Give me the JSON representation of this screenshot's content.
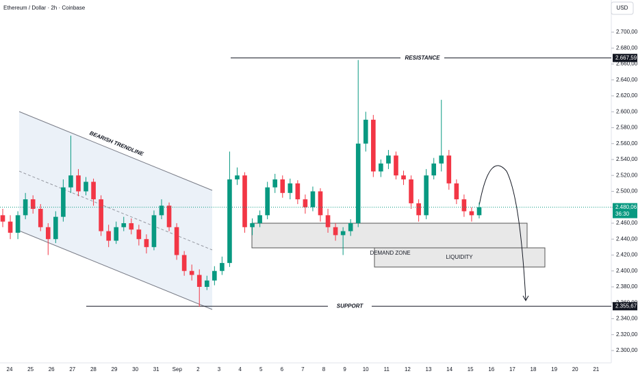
{
  "chart_data": {
    "type": "candlestick",
    "title": "Ethereum / Dollar · 2h · Coinbase",
    "currency": "USD",
    "up_color": "#089981",
    "down_color": "#f23645",
    "open": [
      2470,
      2462,
      2448,
      2470,
      2490,
      2478,
      2455,
      2440,
      2468,
      2505,
      2520,
      2500,
      2512,
      2490,
      2450,
      2438,
      2455,
      2460,
      2452,
      2440,
      2430,
      2470,
      2482,
      2455,
      2420,
      2400,
      2395,
      2380,
      2388,
      2400,
      2410,
      2515,
      2520,
      2455,
      2460,
      2470,
      2505,
      2515,
      2498,
      2510,
      2490,
      2480,
      2500,
      2470,
      2455,
      2445,
      2450,
      2460,
      2560,
      2590,
      2525,
      2535,
      2545,
      2520,
      2515,
      2485,
      2470,
      2520,
      2535,
      2545,
      2510,
      2490,
      2475,
      2470
    ],
    "high": [
      2478,
      2470,
      2475,
      2498,
      2495,
      2484,
      2460,
      2475,
      2515,
      2570,
      2528,
      2518,
      2516,
      2495,
      2458,
      2462,
      2468,
      2466,
      2458,
      2446,
      2476,
      2490,
      2486,
      2460,
      2425,
      2408,
      2402,
      2394,
      2406,
      2418,
      2550,
      2530,
      2524,
      2466,
      2476,
      2512,
      2522,
      2520,
      2516,
      2514,
      2496,
      2506,
      2504,
      2478,
      2460,
      2455,
      2465,
      2665,
      2600,
      2596,
      2540,
      2552,
      2550,
      2526,
      2520,
      2490,
      2528,
      2542,
      2615,
      2552,
      2515,
      2496,
      2480,
      2486
    ],
    "low": [
      2455,
      2440,
      2440,
      2465,
      2472,
      2450,
      2420,
      2435,
      2462,
      2498,
      2494,
      2495,
      2482,
      2444,
      2430,
      2434,
      2450,
      2446,
      2432,
      2422,
      2426,
      2465,
      2450,
      2414,
      2394,
      2388,
      2355,
      2376,
      2382,
      2395,
      2405,
      2508,
      2448,
      2445,
      2455,
      2465,
      2498,
      2492,
      2490,
      2484,
      2472,
      2475,
      2462,
      2448,
      2438,
      2420,
      2444,
      2455,
      2550,
      2518,
      2518,
      2528,
      2515,
      2508,
      2478,
      2462,
      2465,
      2515,
      2525,
      2502,
      2484,
      2468,
      2462,
      2466
    ],
    "close": [
      2462,
      2448,
      2470,
      2490,
      2478,
      2455,
      2440,
      2468,
      2505,
      2520,
      2500,
      2512,
      2490,
      2450,
      2438,
      2455,
      2460,
      2452,
      2440,
      2430,
      2470,
      2482,
      2455,
      2420,
      2400,
      2395,
      2380,
      2388,
      2400,
      2410,
      2515,
      2520,
      2455,
      2460,
      2470,
      2505,
      2515,
      2498,
      2510,
      2490,
      2480,
      2500,
      2470,
      2455,
      2445,
      2450,
      2460,
      2560,
      2590,
      2525,
      2535,
      2545,
      2520,
      2515,
      2485,
      2470,
      2520,
      2535,
      2545,
      2510,
      2490,
      2475,
      2470,
      2480.06
    ],
    "ylim": [
      2284.5,
      2740.4
    ],
    "yticks": [
      {
        "value": 2300,
        "label": "2.300,00"
      },
      {
        "value": 2320,
        "label": "2.320,00"
      },
      {
        "value": 2340,
        "label": "2.340,00"
      },
      {
        "value": 2360,
        "label": "2.360,00"
      },
      {
        "value": 2380,
        "label": "2.380,00"
      },
      {
        "value": 2400,
        "label": "2.400,00"
      },
      {
        "value": 2420,
        "label": "2.420,00"
      },
      {
        "value": 2440,
        "label": "2.440,00"
      },
      {
        "value": 2460,
        "label": "2.460,00"
      },
      {
        "value": 2480,
        "label": "2.480,00"
      },
      {
        "value": 2500,
        "label": "2.500,00"
      },
      {
        "value": 2520,
        "label": "2.520,00"
      },
      {
        "value": 2540,
        "label": "2.540,00"
      },
      {
        "value": 2560,
        "label": "2.560,00"
      },
      {
        "value": 2580,
        "label": "2.580,00"
      },
      {
        "value": 2600,
        "label": "2.600,00"
      },
      {
        "value": 2620,
        "label": "2.620,00"
      },
      {
        "value": 2640,
        "label": "2.640,00"
      },
      {
        "value": 2660,
        "label": "2.660,00"
      },
      {
        "value": 2680,
        "label": "2.680,00"
      },
      {
        "value": 2700,
        "label": "2.700,00"
      }
    ],
    "x_labels": [
      "24",
      "25",
      "26",
      "27",
      "28",
      "29",
      "30",
      "31",
      "Sep",
      "2",
      "3",
      "4",
      "5",
      "6",
      "7",
      "8",
      "9",
      "10",
      "11",
      "12",
      "13",
      "14",
      "15",
      "16",
      "17",
      "18",
      "19",
      "20",
      "21"
    ],
    "resistance": {
      "value": 2667.59,
      "label": "2.667,59",
      "text": "RESISTANCE"
    },
    "support": {
      "value": 2355.67,
      "label": "2.355,67",
      "text": "SUPPORT"
    },
    "last_price": {
      "value": 2480.06,
      "label": "2.480,06"
    },
    "countdown": "36:30",
    "annotations": {
      "trendline": "BEARISH TRENDLINE",
      "demand_zone": "DEMAND ZONE",
      "liquidity": "LIQUIDITY"
    }
  }
}
